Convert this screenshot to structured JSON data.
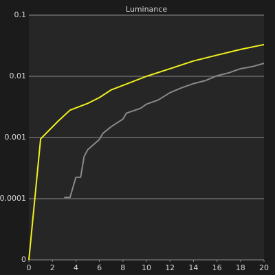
{
  "chart_data": {
    "type": "line",
    "title": "Luminance",
    "log_y": true,
    "grid": true,
    "xlim": [
      0,
      20
    ],
    "xticks": [
      0,
      2,
      4,
      6,
      8,
      10,
      12,
      14,
      16,
      18,
      20
    ],
    "ylim": [
      1e-05,
      0.1
    ],
    "yticks": [
      {
        "value": 1e-05,
        "label": "0"
      },
      0.0001,
      0.001,
      0.01,
      0.1
    ],
    "series": [
      {
        "color": "#f0f01e",
        "x": [
          0,
          1,
          2.5,
          3.5,
          5,
          6,
          7,
          8,
          10,
          12,
          14,
          16,
          18,
          20
        ],
        "values": [
          1e-05,
          0.00095,
          0.00186,
          0.0028,
          0.0036,
          0.0045,
          0.006,
          0.0071,
          0.01,
          0.0133,
          0.0178,
          0.0222,
          0.0275,
          0.033
        ]
      },
      {
        "color": "#8a8a8a",
        "x": [
          3,
          3.5,
          4,
          4.4,
          4.7,
          5,
          6,
          6.3,
          7,
          8,
          8.3,
          9.5,
          10,
          11,
          12,
          13,
          14,
          15,
          16,
          17,
          18,
          19,
          20
        ],
        "values": [
          0.000105,
          0.000105,
          0.000224,
          0.000224,
          0.00049,
          0.00063,
          0.00093,
          0.00117,
          0.0015,
          0.002,
          0.0025,
          0.003,
          0.0035,
          0.0041,
          0.0054,
          0.0065,
          0.0076,
          0.0085,
          0.0102,
          0.0114,
          0.0133,
          0.0144,
          0.0163
        ]
      }
    ]
  }
}
